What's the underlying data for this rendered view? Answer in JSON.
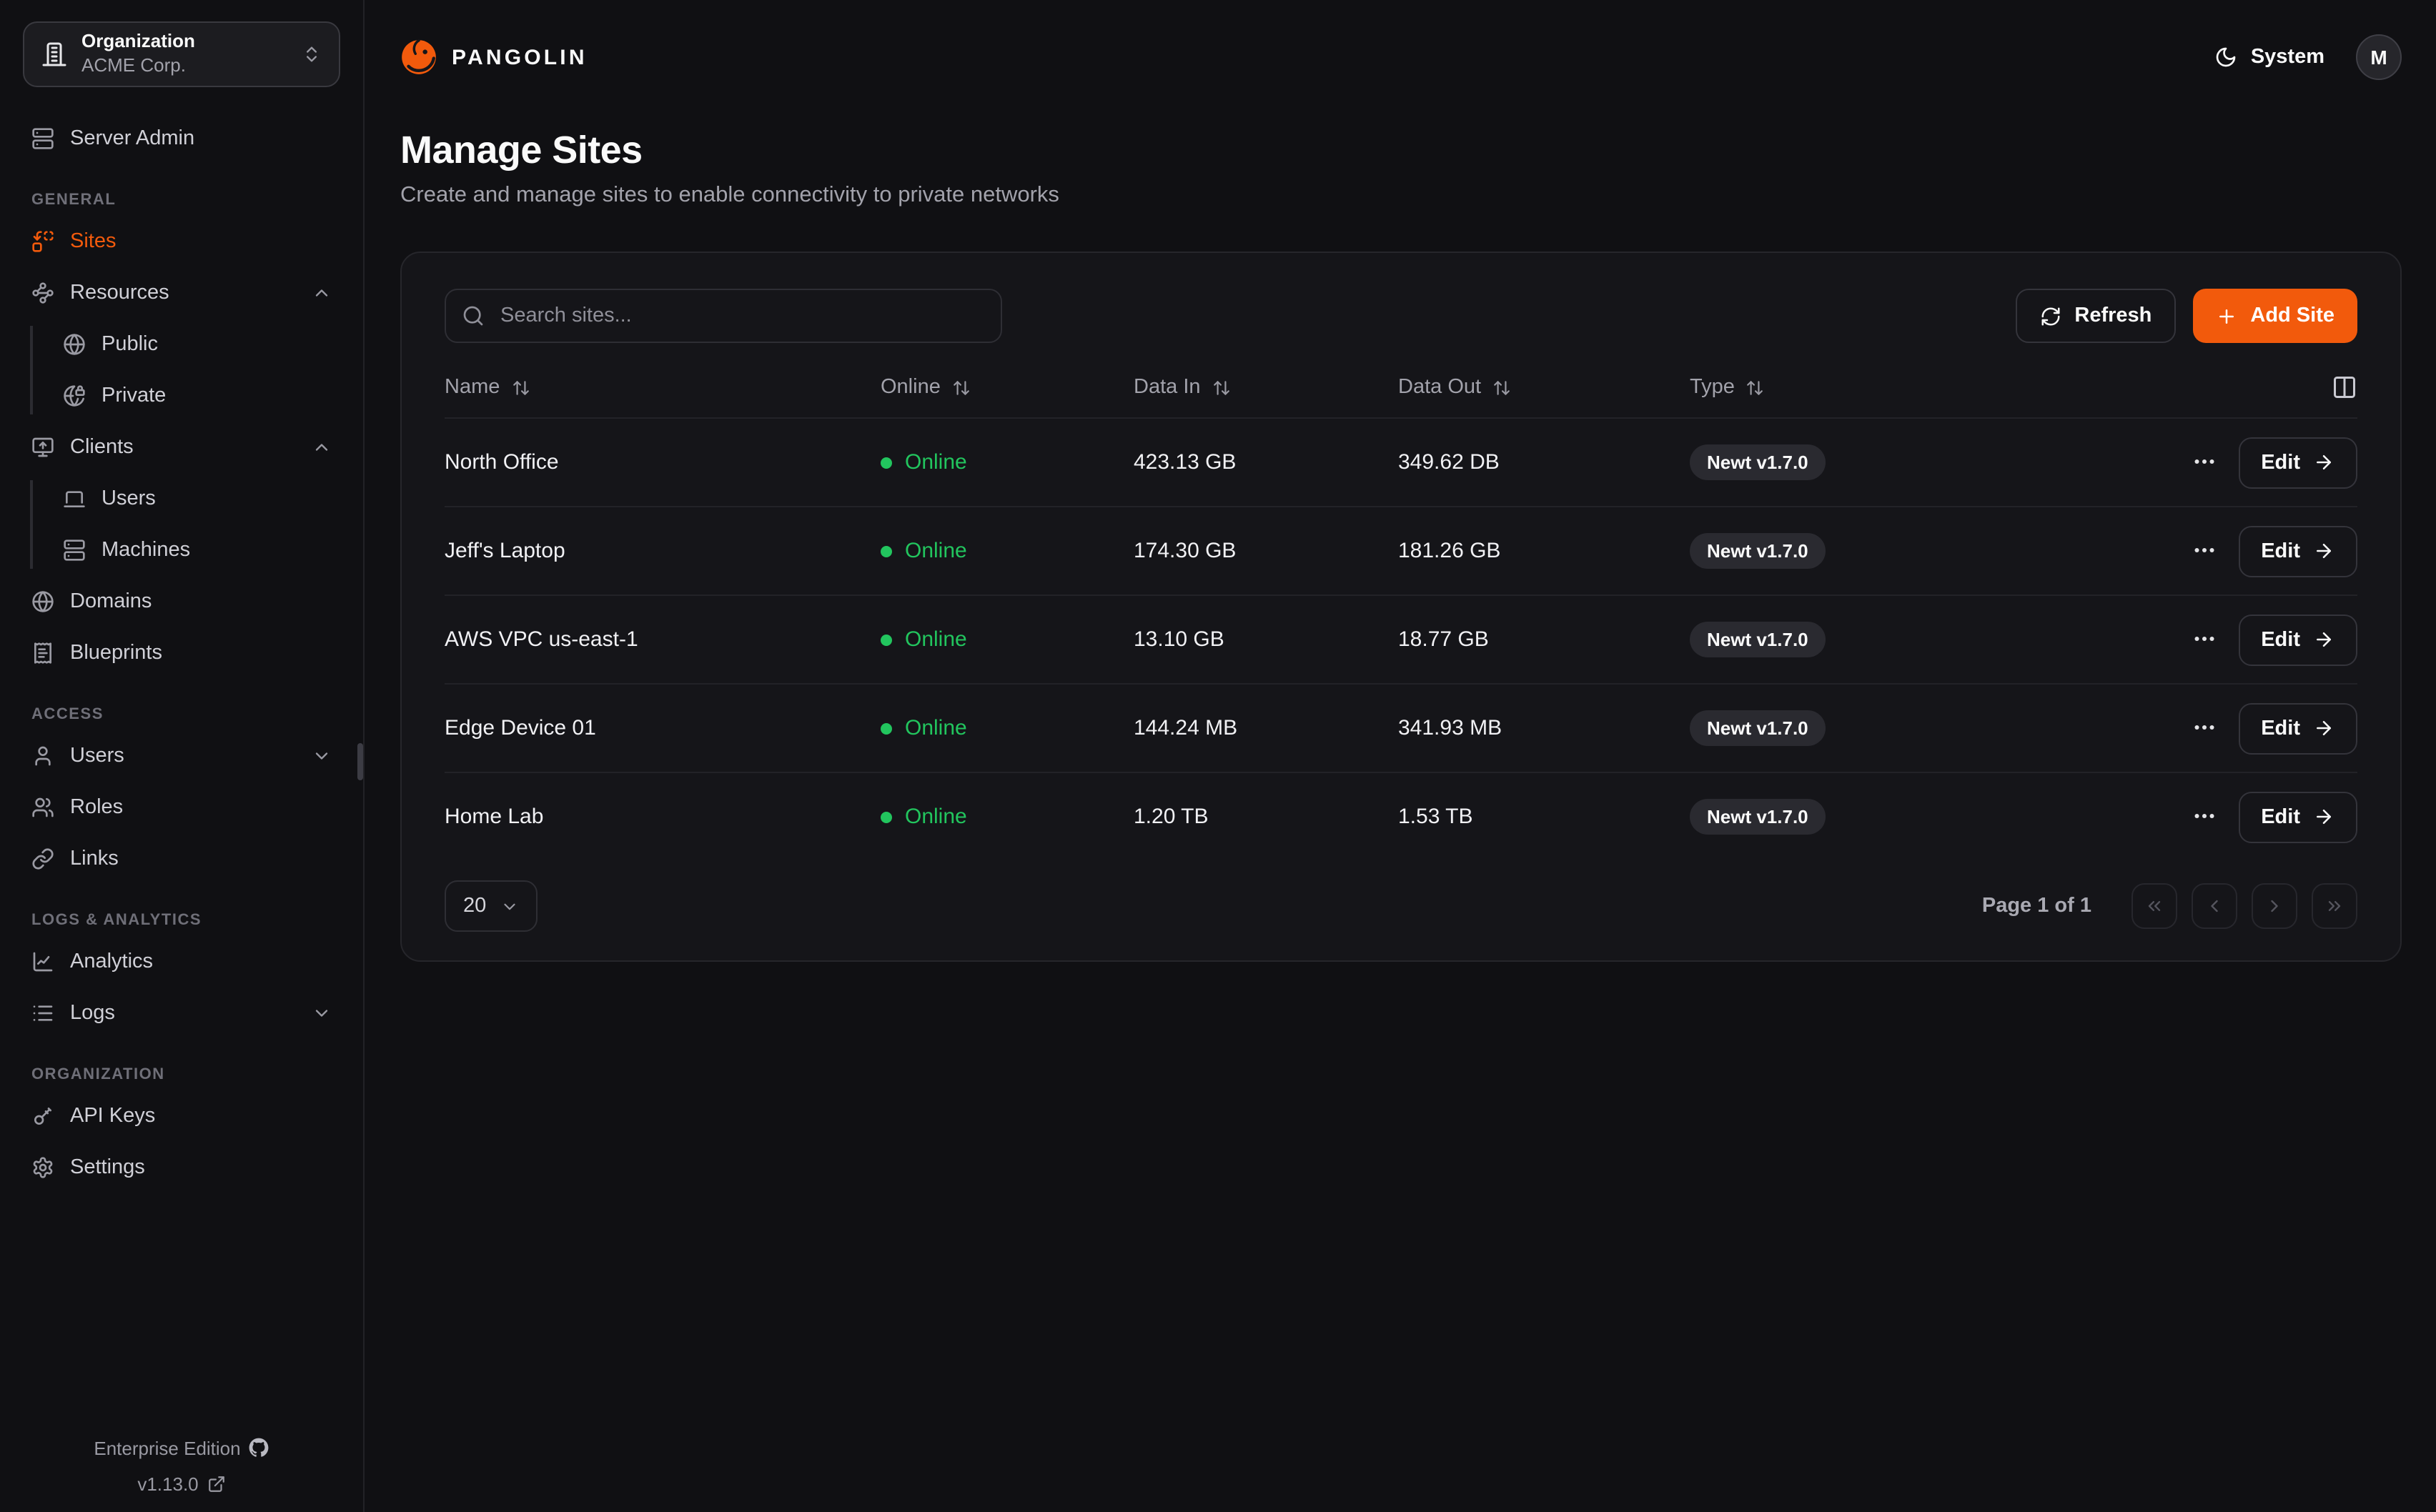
{
  "colors": {
    "accent": "#F25A0C",
    "online_green": "#22C55E"
  },
  "org_selector": {
    "label": "Organization",
    "value": "ACME Corp.",
    "icon": "building-icon",
    "chevron_icon": "chevrons-up-down-icon"
  },
  "sidebar": {
    "sections": [
      {
        "heading": null,
        "items": [
          {
            "label": "Server Admin",
            "icon": "server-icon"
          }
        ]
      },
      {
        "heading": "GENERAL",
        "items": [
          {
            "label": "Sites",
            "icon": "sites-icon",
            "active": true
          },
          {
            "label": "Resources",
            "icon": "resources-icon",
            "chevron": "up",
            "children": [
              {
                "label": "Public",
                "icon": "globe-icon"
              },
              {
                "label": "Private",
                "icon": "globe-lock-icon"
              }
            ]
          },
          {
            "label": "Clients",
            "icon": "monitor-up-icon",
            "chevron": "up",
            "children": [
              {
                "label": "Users",
                "icon": "laptop-icon"
              },
              {
                "label": "Machines",
                "icon": "server-icon"
              }
            ]
          },
          {
            "label": "Domains",
            "icon": "globe-icon"
          },
          {
            "label": "Blueprints",
            "icon": "receipt-icon"
          }
        ]
      },
      {
        "heading": "ACCESS",
        "items": [
          {
            "label": "Users",
            "icon": "user-icon",
            "chevron": "down"
          },
          {
            "label": "Roles",
            "icon": "users-icon"
          },
          {
            "label": "Links",
            "icon": "link-icon"
          }
        ]
      },
      {
        "heading": "LOGS & ANALYTICS",
        "items": [
          {
            "label": "Analytics",
            "icon": "chart-icon"
          },
          {
            "label": "Logs",
            "icon": "list-icon",
            "chevron": "down"
          }
        ]
      },
      {
        "heading": "ORGANIZATION",
        "items": [
          {
            "label": "API Keys",
            "icon": "key-icon"
          },
          {
            "label": "Settings",
            "icon": "gear-icon"
          }
        ]
      }
    ],
    "footer": {
      "edition": "Enterprise Edition",
      "edition_icon": "github-icon",
      "version": "v1.13.0",
      "version_icon": "external-link-icon"
    }
  },
  "header": {
    "brand": "PANGOLIN",
    "brand_icon": "pangolin-logo-icon",
    "theme_label": "System",
    "theme_icon": "moon-icon",
    "avatar_initial": "M"
  },
  "page": {
    "title": "Manage Sites",
    "subtitle": "Create and manage sites to enable connectivity to private networks"
  },
  "toolbar": {
    "search_placeholder": "Search sites...",
    "search_icon": "search-icon",
    "refresh_label": "Refresh",
    "refresh_icon": "refresh-icon",
    "add_site_label": "Add Site",
    "add_site_icon": "plus-icon"
  },
  "table": {
    "columns": [
      "Name",
      "Online",
      "Data In",
      "Data Out",
      "Type"
    ],
    "sort_icon": "sort-arrows-icon",
    "columns_toggle_icon": "columns-icon",
    "row_menu_icon": "ellipsis-icon",
    "edit_label": "Edit",
    "edit_icon": "arrow-right-icon",
    "rows": [
      {
        "name": "North Office",
        "status": "Online",
        "data_in": "423.13 GB",
        "data_out": "349.62 DB",
        "type": "Newt v1.7.0"
      },
      {
        "name": "Jeff's Laptop",
        "status": "Online",
        "data_in": "174.30 GB",
        "data_out": "181.26 GB",
        "type": "Newt v1.7.0"
      },
      {
        "name": "AWS VPC us-east-1",
        "status": "Online",
        "data_in": "13.10 GB",
        "data_out": "18.77 GB",
        "type": "Newt v1.7.0"
      },
      {
        "name": "Edge Device 01",
        "status": "Online",
        "data_in": "144.24 MB",
        "data_out": "341.93 MB",
        "type": "Newt v1.7.0"
      },
      {
        "name": "Home Lab",
        "status": "Online",
        "data_in": "1.20 TB",
        "data_out": "1.53 TB",
        "type": "Newt v1.7.0"
      }
    ]
  },
  "pagination": {
    "page_size": "20",
    "page_size_chevron_icon": "chevron-down-icon",
    "page_label": "Page 1 of 1",
    "buttons": [
      {
        "name": "first-page-button",
        "icon": "chevrons-left-icon"
      },
      {
        "name": "prev-page-button",
        "icon": "chevron-left-icon"
      },
      {
        "name": "next-page-button",
        "icon": "chevron-right-icon"
      },
      {
        "name": "last-page-button",
        "icon": "chevrons-right-icon"
      }
    ]
  }
}
